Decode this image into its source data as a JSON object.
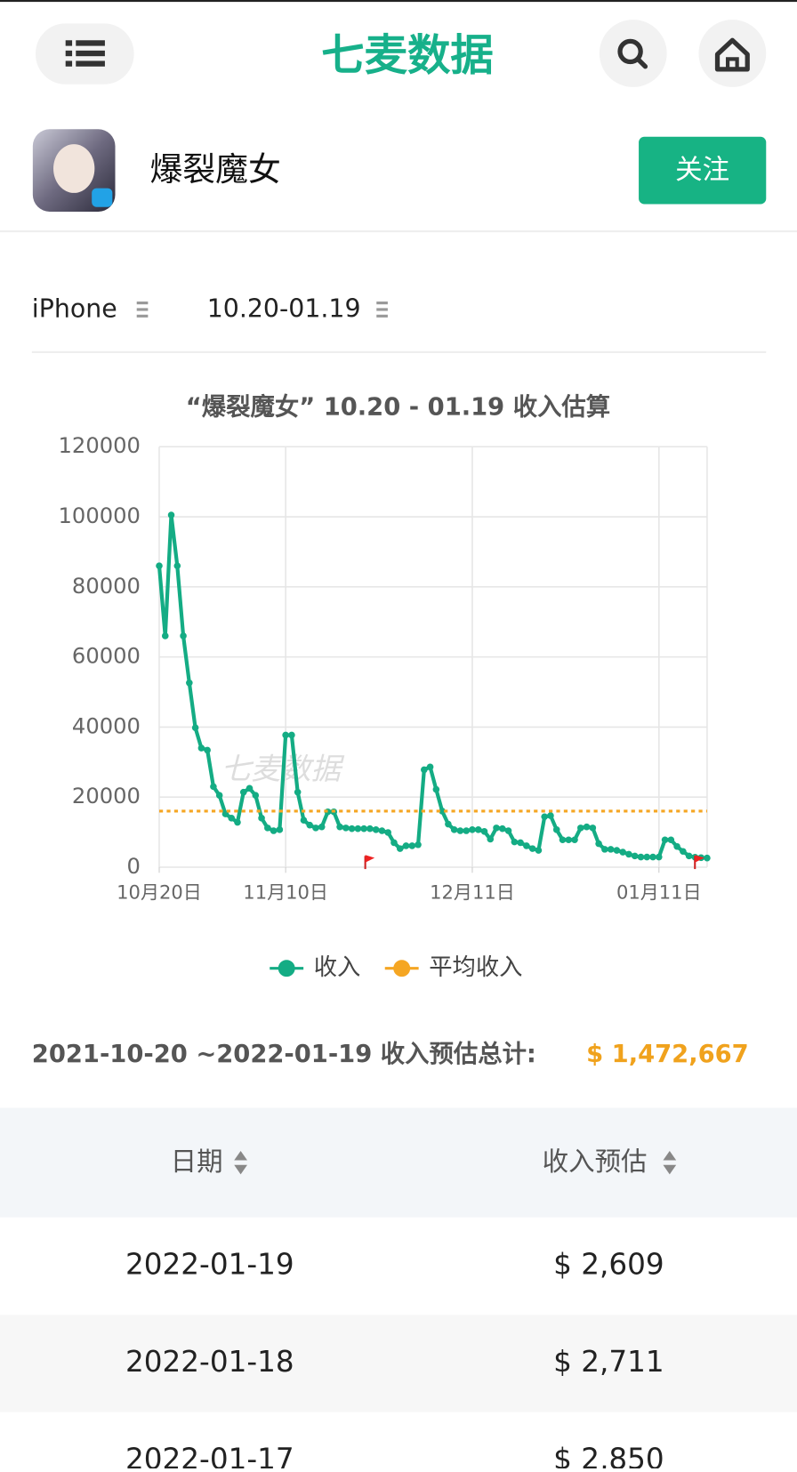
{
  "header": {
    "logo": "七麦数据"
  },
  "app": {
    "name": "爆裂魔女",
    "follow": "关注"
  },
  "filters": {
    "device": "iPhone",
    "range": "10.20-01.19"
  },
  "chart_data": {
    "type": "line",
    "title": "“爆裂魔女” 10.20 - 01.19 收入估算",
    "watermark": "七麦数据",
    "categories": [
      "10月20日",
      null,
      null,
      null,
      null,
      null,
      null,
      null,
      null,
      null,
      null,
      null,
      null,
      null,
      null,
      null,
      null,
      null,
      null,
      null,
      null,
      "11月10日",
      null,
      null,
      null,
      null,
      null,
      null,
      null,
      null,
      null,
      null,
      null,
      null,
      null,
      null,
      null,
      null,
      null,
      null,
      null,
      null,
      null,
      null,
      null,
      null,
      null,
      null,
      null,
      null,
      null,
      null,
      "12月11日",
      null,
      null,
      null,
      null,
      null,
      null,
      null,
      null,
      null,
      null,
      null,
      null,
      null,
      null,
      null,
      null,
      null,
      null,
      null,
      null,
      null,
      null,
      null,
      null,
      null,
      null,
      null,
      null,
      null,
      null,
      "01月11日",
      null,
      null,
      null,
      null,
      null,
      null,
      null,
      null
    ],
    "series": [
      {
        "name": "收入",
        "color": "#14ac84",
        "values": [
          86000,
          66000,
          100500,
          86000,
          66000,
          52600,
          39800,
          34000,
          33400,
          23000,
          20500,
          15200,
          14000,
          12800,
          21400,
          22500,
          20500,
          14000,
          11200,
          10400,
          10700,
          37700,
          37700,
          21400,
          13400,
          12000,
          11200,
          11500,
          15800,
          15800,
          11500,
          11200,
          11000,
          11000,
          11000,
          11000,
          10700,
          10400,
          9900,
          7000,
          5300,
          6100,
          6100,
          6400,
          27800,
          28600,
          22200,
          16000,
          12300,
          10700,
          10400,
          10400,
          10700,
          10700,
          10200,
          8000,
          11200,
          11000,
          10400,
          7200,
          7000,
          6100,
          5300,
          4800,
          14400,
          14700,
          10700,
          7800,
          7800,
          7800,
          11200,
          11500,
          11200,
          6700,
          5100,
          5100,
          4800,
          4300,
          3700,
          3200,
          2900,
          2900,
          2900,
          2900,
          7800,
          7800,
          5900,
          4500,
          3200,
          2850,
          2711,
          2609
        ]
      },
      {
        "name": "平均收入",
        "color": "#f5a623",
        "value": 16000
      }
    ],
    "ylim": [
      0,
      120000
    ],
    "yticks": [
      0,
      20000,
      40000,
      60000,
      80000,
      100000,
      120000
    ],
    "grid": true
  },
  "summary": {
    "label": "2021-10-20 ~2022-01-19 收入预估总计:",
    "total": "$ 1,472,667"
  },
  "table": {
    "columns": [
      "日期",
      "收入预估"
    ],
    "rows": [
      [
        "2022-01-19",
        "$ 2,609"
      ],
      [
        "2022-01-18",
        "$ 2,711"
      ],
      [
        "2022-01-17",
        "$ 2,850"
      ]
    ]
  }
}
